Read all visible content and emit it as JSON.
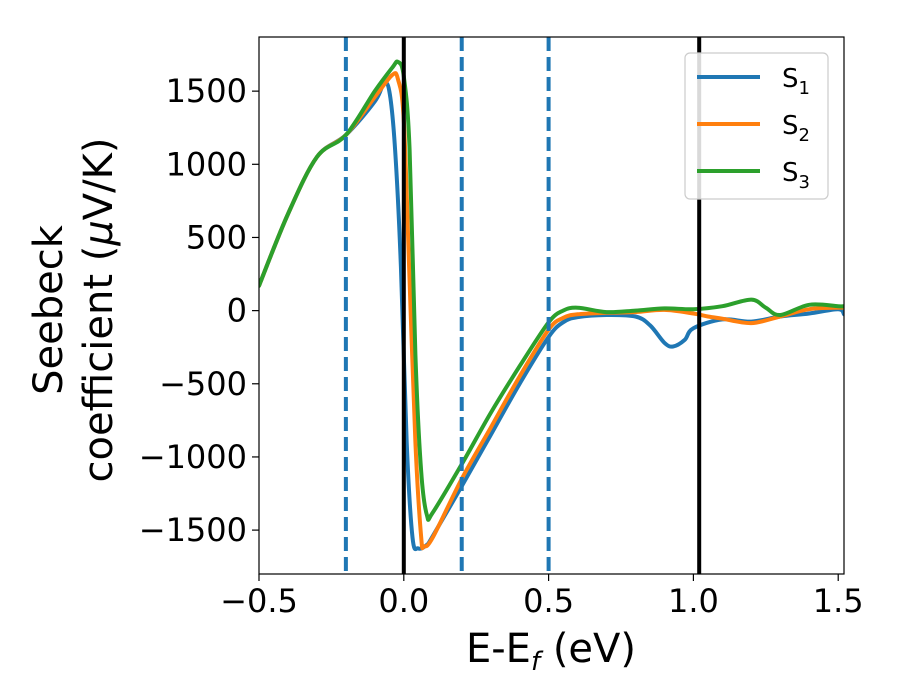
{
  "chart_data": {
    "type": "line",
    "xlabel": {
      "main": "E-E",
      "sub": "f",
      "unit": " (eV)"
    },
    "ylabel": {
      "line1": "Seebeck",
      "line2": "coefficient  (",
      "mu": "μ",
      "line2_end": "V/K)"
    },
    "xlim": [
      -0.5,
      1.52
    ],
    "ylim": [
      -1800,
      1870
    ],
    "xticks": [
      -0.5,
      0.0,
      0.5,
      1.0,
      1.5
    ],
    "xtick_labels": [
      "−0.5",
      "0.0",
      "0.5",
      "1.0",
      "1.5"
    ],
    "yticks": [
      -1500,
      -1000,
      -500,
      0,
      500,
      1000,
      1500
    ],
    "ytick_labels": [
      "−1500",
      "−1000",
      "−500",
      "0",
      "500",
      "1000",
      "1500"
    ],
    "grid": false,
    "legend_position": "top-right",
    "vlines_solid": [
      0.0,
      1.02
    ],
    "vlines_dashed": [
      -0.2,
      0.2,
      0.5
    ],
    "series": [
      {
        "name": "S",
        "subscript": "1",
        "color": "#1f77b4",
        "points": [
          [
            -0.5,
            170
          ],
          [
            -0.4,
            660
          ],
          [
            -0.3,
            1050
          ],
          [
            -0.2,
            1200
          ],
          [
            -0.1,
            1430
          ],
          [
            -0.07,
            1545
          ],
          [
            -0.05,
            1500
          ],
          [
            -0.03,
            1100
          ],
          [
            -0.01,
            300
          ],
          [
            0.01,
            -900
          ],
          [
            0.03,
            -1550
          ],
          [
            0.05,
            -1625
          ],
          [
            0.08,
            -1600
          ],
          [
            0.1,
            -1540
          ],
          [
            0.2,
            -1200
          ],
          [
            0.3,
            -850
          ],
          [
            0.4,
            -500
          ],
          [
            0.5,
            -180
          ],
          [
            0.55,
            -80
          ],
          [
            0.6,
            -45
          ],
          [
            0.7,
            -30
          ],
          [
            0.8,
            -40
          ],
          [
            0.85,
            -100
          ],
          [
            0.9,
            -220
          ],
          [
            0.93,
            -245
          ],
          [
            0.97,
            -200
          ],
          [
            1.0,
            -120
          ],
          [
            1.1,
            -60
          ],
          [
            1.2,
            -75
          ],
          [
            1.3,
            -40
          ],
          [
            1.4,
            -20
          ],
          [
            1.5,
            10
          ],
          [
            1.52,
            -25
          ]
        ]
      },
      {
        "name": "S",
        "subscript": "2",
        "color": "#ff7f0e",
        "points": [
          [
            -0.5,
            170
          ],
          [
            -0.4,
            660
          ],
          [
            -0.3,
            1050
          ],
          [
            -0.2,
            1200
          ],
          [
            -0.1,
            1460
          ],
          [
            -0.04,
            1610
          ],
          [
            -0.02,
            1580
          ],
          [
            0.0,
            1300
          ],
          [
            0.02,
            200
          ],
          [
            0.04,
            -900
          ],
          [
            0.06,
            -1550
          ],
          [
            0.07,
            -1610
          ],
          [
            0.1,
            -1550
          ],
          [
            0.2,
            -1150
          ],
          [
            0.3,
            -800
          ],
          [
            0.4,
            -450
          ],
          [
            0.5,
            -130
          ],
          [
            0.55,
            -50
          ],
          [
            0.6,
            -25
          ],
          [
            0.7,
            -15
          ],
          [
            0.8,
            -10
          ],
          [
            0.9,
            5
          ],
          [
            1.0,
            -20
          ],
          [
            1.05,
            -40
          ],
          [
            1.1,
            -55
          ],
          [
            1.2,
            -85
          ],
          [
            1.3,
            -40
          ],
          [
            1.4,
            10
          ],
          [
            1.5,
            20
          ],
          [
            1.52,
            20
          ]
        ]
      },
      {
        "name": "S",
        "subscript": "3",
        "color": "#2ca02c",
        "points": [
          [
            -0.5,
            170
          ],
          [
            -0.4,
            660
          ],
          [
            -0.3,
            1050
          ],
          [
            -0.2,
            1200
          ],
          [
            -0.1,
            1500
          ],
          [
            -0.04,
            1660
          ],
          [
            -0.02,
            1700
          ],
          [
            0.0,
            1600
          ],
          [
            0.02,
            1100
          ],
          [
            0.04,
            -300
          ],
          [
            0.06,
            -1100
          ],
          [
            0.08,
            -1400
          ],
          [
            0.1,
            -1380
          ],
          [
            0.2,
            -1050
          ],
          [
            0.3,
            -700
          ],
          [
            0.4,
            -380
          ],
          [
            0.5,
            -80
          ],
          [
            0.55,
            0
          ],
          [
            0.6,
            20
          ],
          [
            0.7,
            -10
          ],
          [
            0.8,
            0
          ],
          [
            0.9,
            15
          ],
          [
            1.0,
            10
          ],
          [
            1.1,
            30
          ],
          [
            1.2,
            75
          ],
          [
            1.25,
            20
          ],
          [
            1.3,
            -30
          ],
          [
            1.4,
            40
          ],
          [
            1.5,
            30
          ],
          [
            1.52,
            30
          ]
        ]
      }
    ]
  }
}
